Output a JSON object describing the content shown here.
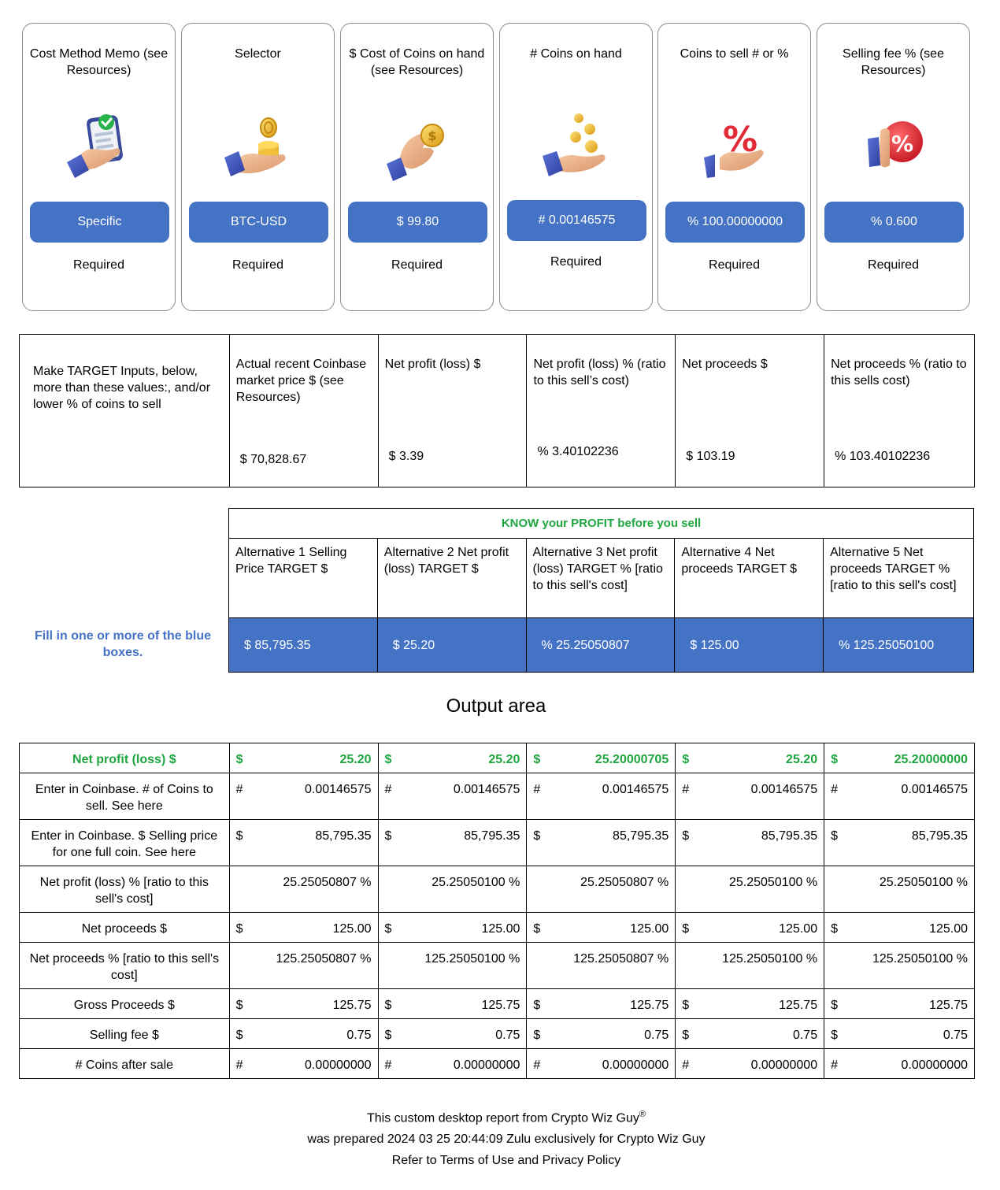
{
  "cards": [
    {
      "title": "Cost Method Memo (see Resources)",
      "value": "Specific",
      "status": "Required",
      "icon": "hand-holding-phone-checkmark-icon"
    },
    {
      "title": "Selector",
      "value": "BTC-USD",
      "status": "Required",
      "icon": "hand-holding-coin-stack-icon"
    },
    {
      "title": "$ Cost of Coins on hand (see Resources)",
      "value": "$ 99.80",
      "status": "Required",
      "icon": "hand-holding-dollar-coin-icon"
    },
    {
      "title": "# Coins on hand",
      "value": "# 0.00146575",
      "status": "Required",
      "icon": "hand-with-falling-coins-icon"
    },
    {
      "title": "Coins to sell # or %",
      "value": "% 100.00000000",
      "status": "Required",
      "icon": "hand-holding-percent-icon"
    },
    {
      "title": "Selling fee % (see Resources)",
      "value": "% 0.600",
      "status": "Required",
      "icon": "hand-holding-percent-badge-icon"
    }
  ],
  "results": {
    "label": "Make TARGET Inputs, below, more than these values:, and/or lower % of coins to sell",
    "columns": [
      {
        "header": "Actual recent Coinbase market price $ (see Resources)",
        "value": "$ 70,828.67"
      },
      {
        "header": "Net profit (loss) $",
        "value": "$ 3.39"
      },
      {
        "header": "Net profit (loss) % (ratio to this sell’s cost)",
        "value": "% 3.40102236"
      },
      {
        "header": "Net proceeds $",
        "value": "$ 103.19"
      },
      {
        "header": "Net proceeds % (ratio to this sells cost)",
        "value": "% 103.40102236"
      }
    ]
  },
  "targets": {
    "banner": "KNOW your PROFIT before you sell",
    "fill_note": "Fill in one or more of the blue boxes.",
    "alternatives": [
      {
        "header": "Alternative 1 Selling Price TARGET $",
        "value": "$ 85,795.35"
      },
      {
        "header": "Alternative 2 Net profit (loss) TARGET $",
        "value": "$ 25.20"
      },
      {
        "header": "Alternative 3 Net profit (loss) TARGET % [ratio to this sell's cost]",
        "value": "% 25.25050807"
      },
      {
        "header": "Alternative 4 Net proceeds TARGET $",
        "value": "$ 125.00"
      },
      {
        "header": "Alternative 5 Net proceeds TARGET % [ratio to this sell's cost]",
        "value": "% 125.25050100"
      }
    ]
  },
  "output": {
    "title": "Output area",
    "rows": [
      {
        "label": "Net profit (loss) $",
        "cells": [
          {
            "sym": "$",
            "val": "25.20"
          },
          {
            "sym": "$",
            "val": "25.20"
          },
          {
            "sym": "$",
            "val": "25.20000705"
          },
          {
            "sym": "$",
            "val": "25.20"
          },
          {
            "sym": "$",
            "val": "25.20000000"
          }
        ]
      },
      {
        "label": "Enter in Coinbase. # of Coins to sell. See here",
        "cells": [
          {
            "sym": "#",
            "val": "0.00146575"
          },
          {
            "sym": "#",
            "val": "0.00146575"
          },
          {
            "sym": "#",
            "val": "0.00146575"
          },
          {
            "sym": "#",
            "val": "0.00146575"
          },
          {
            "sym": "#",
            "val": "0.00146575"
          }
        ]
      },
      {
        "label": "Enter in Coinbase. $ Selling price for one full coin. See here",
        "cells": [
          {
            "sym": "$",
            "val": "85,795.35"
          },
          {
            "sym": "$",
            "val": "85,795.35"
          },
          {
            "sym": "$",
            "val": "85,795.35"
          },
          {
            "sym": "$",
            "val": "85,795.35"
          },
          {
            "sym": "$",
            "val": "85,795.35"
          }
        ]
      },
      {
        "label": "Net profit (loss) % [ratio to this sell's cost]",
        "cells": [
          {
            "sym": "",
            "val": "25.25050807 %"
          },
          {
            "sym": "",
            "val": "25.25050100 %"
          },
          {
            "sym": "",
            "val": "25.25050807 %"
          },
          {
            "sym": "",
            "val": "25.25050100 %"
          },
          {
            "sym": "",
            "val": "25.25050100 %"
          }
        ]
      },
      {
        "label": "Net proceeds $",
        "cells": [
          {
            "sym": "$",
            "val": "125.00"
          },
          {
            "sym": "$",
            "val": "125.00"
          },
          {
            "sym": "$",
            "val": "125.00"
          },
          {
            "sym": "$",
            "val": "125.00"
          },
          {
            "sym": "$",
            "val": "125.00"
          }
        ]
      },
      {
        "label": "Net proceeds % [ratio to this sell's cost]",
        "cells": [
          {
            "sym": "",
            "val": "125.25050807 %"
          },
          {
            "sym": "",
            "val": "125.25050100 %"
          },
          {
            "sym": "",
            "val": "125.25050807 %"
          },
          {
            "sym": "",
            "val": "125.25050100 %"
          },
          {
            "sym": "",
            "val": "125.25050100 %"
          }
        ]
      },
      {
        "label": "Gross Proceeds $",
        "cells": [
          {
            "sym": "$",
            "val": "125.75"
          },
          {
            "sym": "$",
            "val": "125.75"
          },
          {
            "sym": "$",
            "val": "125.75"
          },
          {
            "sym": "$",
            "val": "125.75"
          },
          {
            "sym": "$",
            "val": "125.75"
          }
        ]
      },
      {
        "label": "Selling fee $",
        "cells": [
          {
            "sym": "$",
            "val": "0.75"
          },
          {
            "sym": "$",
            "val": "0.75"
          },
          {
            "sym": "$",
            "val": "0.75"
          },
          {
            "sym": "$",
            "val": "0.75"
          },
          {
            "sym": "$",
            "val": "0.75"
          }
        ]
      },
      {
        "label": "# Coins after sale",
        "cells": [
          {
            "sym": "#",
            "val": "0.00000000"
          },
          {
            "sym": "#",
            "val": "0.00000000"
          },
          {
            "sym": "#",
            "val": "0.00000000"
          },
          {
            "sym": "#",
            "val": "0.00000000"
          },
          {
            "sym": "#",
            "val": "0.00000000"
          }
        ]
      }
    ]
  },
  "footer": {
    "line1_prefix": "This custom desktop report from Crypto Wiz Guy",
    "registered": "®",
    "line2_prefix": "was prepared 2024 03 25 20:44:09 Zulu exclusively for",
    "line2_user": "Crypto Wiz Guy",
    "line3": "Refer to Terms of Use and Privacy Policy"
  },
  "colors": {
    "accent_blue": "#4472c4",
    "profit_green": "#1fa640",
    "card_border": "#8c8c8c"
  }
}
